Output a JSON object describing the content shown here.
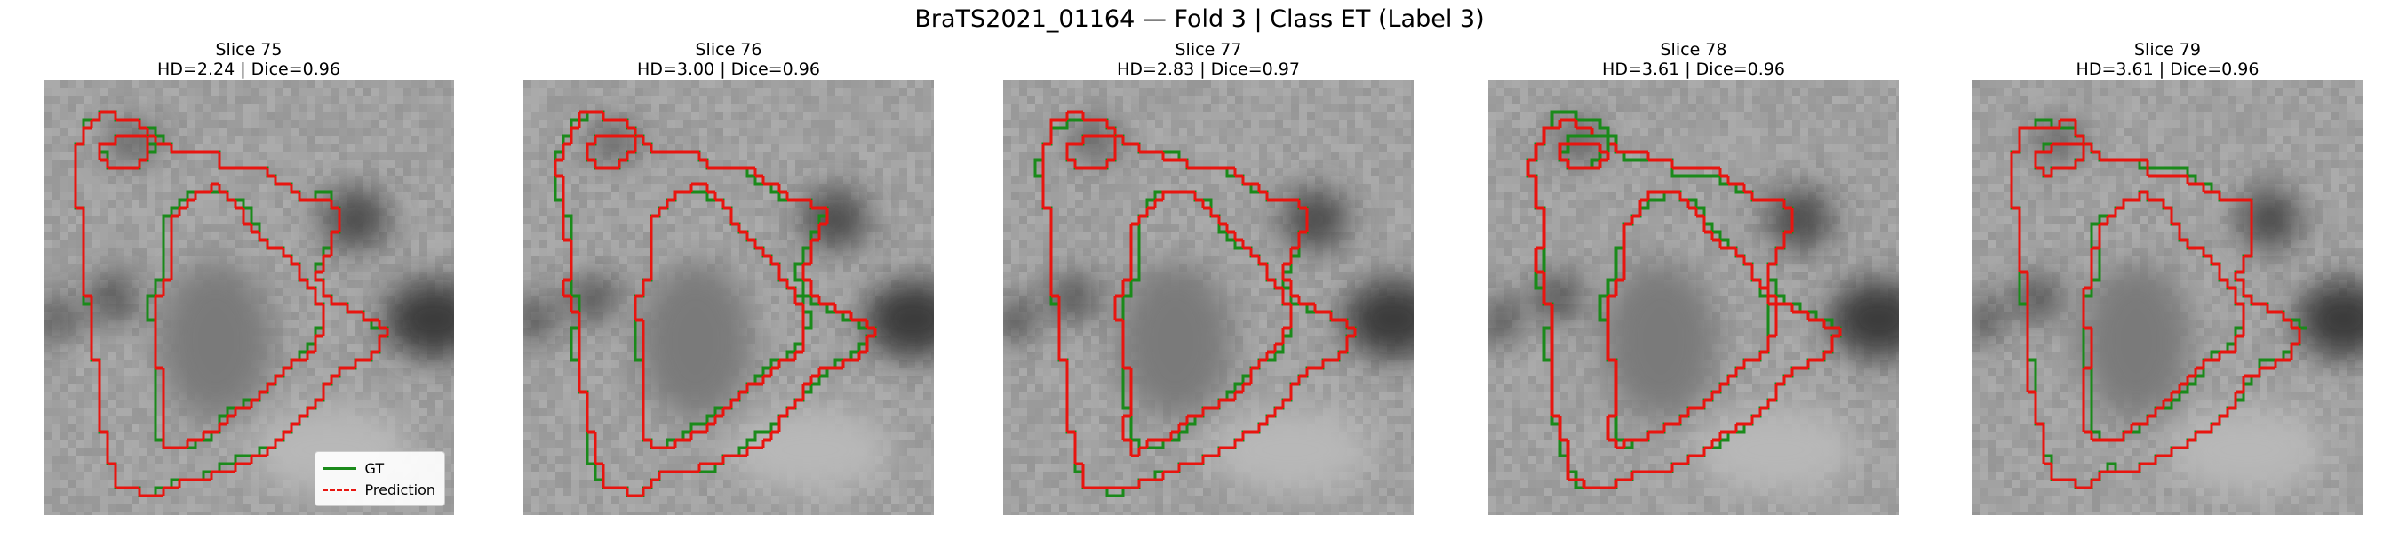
{
  "figure": {
    "title": "BraTS2021_01164 — Fold 3 | Class ET (Label 3)",
    "colors": {
      "gt": "#1a8a1a",
      "prediction": "#e8150f"
    }
  },
  "panels": [
    {
      "slice": "Slice 75",
      "metrics": "HD=2.24 | Dice=0.96",
      "show_legend": true
    },
    {
      "slice": "Slice 76",
      "metrics": "HD=3.00 | Dice=0.96",
      "show_legend": false
    },
    {
      "slice": "Slice 77",
      "metrics": "HD=2.83 | Dice=0.97",
      "show_legend": false
    },
    {
      "slice": "Slice 78",
      "metrics": "HD=3.61 | Dice=0.96",
      "show_legend": false
    },
    {
      "slice": "Slice 79",
      "metrics": "HD=3.61 | Dice=0.96",
      "show_legend": false
    }
  ],
  "legend": {
    "gt_label": "GT",
    "prediction_label": "Prediction"
  }
}
